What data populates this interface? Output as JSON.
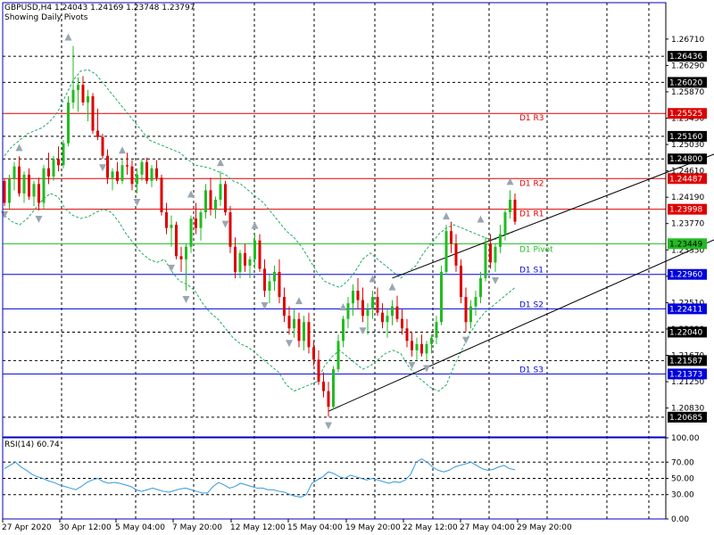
{
  "header": {
    "symbol_line": "GBPUSD,H4  1.24043 1.24169 1.23748 1.23797",
    "subtitle": "Showing Daily Pivots"
  },
  "rsi_label": "RSI(14) 60.74",
  "colors": {
    "frame": "#0000c0",
    "bull": "#22bb22",
    "bear": "#dd0000",
    "band": "#22aa66",
    "resistance": "#dd0000",
    "support": "#0000dd",
    "pivot": "#22bb22",
    "channel": "#000000",
    "rsi": "#3399dd",
    "grid": "#000000",
    "fractal": "#9aa6b2"
  },
  "chart_data": {
    "type": "candlestick",
    "symbol": "GBPUSD",
    "timeframe": "H4",
    "price_axis": {
      "min": 1.2037,
      "max": 1.2729,
      "ticks": [
        "1.26710",
        "1.26290",
        "1.25870",
        "1.25450",
        "1.25030",
        "1.24610",
        "1.24190",
        "1.23770",
        "1.23350",
        "1.22930",
        "1.22510",
        "1.22090",
        "1.21670",
        "1.21250",
        "1.20830"
      ]
    },
    "highlighted_prices": [
      {
        "label": "1.26436",
        "value": 1.26436,
        "kind": "fractal-level"
      },
      {
        "label": "1.26020",
        "value": 1.2602,
        "kind": "fractal-level"
      },
      {
        "label": "1.25525",
        "value": 1.25525,
        "kind": "resistance"
      },
      {
        "label": "1.25160",
        "value": 1.2516,
        "kind": "fractal-level"
      },
      {
        "label": "1.24800",
        "value": 1.248,
        "kind": "fractal-level"
      },
      {
        "label": "1.24487",
        "value": 1.24487,
        "kind": "resistance"
      },
      {
        "label": "1.23998",
        "value": 1.23998,
        "kind": "resistance"
      },
      {
        "label": "1.23449",
        "value": 1.23449,
        "kind": "pivot"
      },
      {
        "label": "1.22960",
        "value": 1.2296,
        "kind": "support"
      },
      {
        "label": "1.22411",
        "value": 1.22411,
        "kind": "support"
      },
      {
        "label": "1.22040",
        "value": 1.2204,
        "kind": "fractal-level"
      },
      {
        "label": "1.21587",
        "value": 1.21587,
        "kind": "fractal-level"
      },
      {
        "label": "1.21373",
        "value": 1.21373,
        "kind": "support"
      },
      {
        "label": "1.20685",
        "value": 1.20685,
        "kind": "fractal-level"
      }
    ],
    "pivot_lines": [
      {
        "name": "D1 R3",
        "value": 1.25525,
        "kind": "resistance"
      },
      {
        "name": "D1 R2",
        "value": 1.24487,
        "kind": "resistance"
      },
      {
        "name": "D1 R1",
        "value": 1.23998,
        "kind": "resistance"
      },
      {
        "name": "D1 Pivot",
        "value": 1.23449,
        "kind": "pivot"
      },
      {
        "name": "D1 S1",
        "value": 1.2296,
        "kind": "support"
      },
      {
        "name": "D1 S2",
        "value": 1.22411,
        "kind": "support"
      },
      {
        "name": "D1 S3",
        "value": 1.21373,
        "kind": "support"
      }
    ],
    "dotted_levels": [
      1.26436,
      1.2602,
      1.2516,
      1.248,
      1.2204,
      1.21587,
      1.20685
    ],
    "time_labels": [
      "27 Apr 2020",
      "30 Apr 12:00",
      "5 May 04:00",
      "7 May 20:00",
      "12 May 12:00",
      "15 May 04:00",
      "19 May 20:00",
      "22 May 12:00",
      "27 May 04:00",
      "29 May 20:00"
    ],
    "candles": [
      [
        1.2445,
        1.2448,
        1.2405,
        1.241
      ],
      [
        1.241,
        1.2455,
        1.24,
        1.2448
      ],
      [
        1.2448,
        1.2475,
        1.243,
        1.2468
      ],
      [
        1.2468,
        1.2484,
        1.242,
        1.2425
      ],
      [
        1.2425,
        1.246,
        1.241,
        1.2455
      ],
      [
        1.2455,
        1.2465,
        1.2415,
        1.242
      ],
      [
        1.242,
        1.2445,
        1.2405,
        1.244
      ],
      [
        1.244,
        1.245,
        1.2398,
        1.241
      ],
      [
        1.241,
        1.247,
        1.24,
        1.2465
      ],
      [
        1.2465,
        1.249,
        1.244,
        1.2452
      ],
      [
        1.2452,
        1.2485,
        1.2445,
        1.248
      ],
      [
        1.248,
        1.25,
        1.246,
        1.247
      ],
      [
        1.247,
        1.251,
        1.2465,
        1.2505
      ],
      [
        1.2505,
        1.258,
        1.25,
        1.257
      ],
      [
        1.257,
        1.266,
        1.256,
        1.259
      ],
      [
        1.259,
        1.261,
        1.2555,
        1.2598
      ],
      [
        1.2598,
        1.2612,
        1.2565,
        1.257
      ],
      [
        1.257,
        1.259,
        1.254,
        1.258
      ],
      [
        1.258,
        1.2585,
        1.252,
        1.2525
      ],
      [
        1.2525,
        1.256,
        1.251,
        1.2515
      ],
      [
        1.2515,
        1.252,
        1.248,
        1.2485
      ],
      [
        1.2485,
        1.2495,
        1.244,
        1.245
      ],
      [
        1.245,
        1.2465,
        1.243,
        1.246
      ],
      [
        1.246,
        1.2475,
        1.244,
        1.2445
      ],
      [
        1.2445,
        1.248,
        1.244,
        1.247
      ],
      [
        1.247,
        1.249,
        1.2455,
        1.2468
      ],
      [
        1.2468,
        1.2478,
        1.243,
        1.244
      ],
      [
        1.244,
        1.2465,
        1.2425,
        1.2455
      ],
      [
        1.2455,
        1.248,
        1.2445,
        1.2475
      ],
      [
        1.2475,
        1.2482,
        1.244,
        1.2445
      ],
      [
        1.2445,
        1.247,
        1.2435,
        1.2465
      ],
      [
        1.2465,
        1.2478,
        1.2445,
        1.245
      ],
      [
        1.245,
        1.2455,
        1.239,
        1.2395
      ],
      [
        1.2395,
        1.241,
        1.236,
        1.237
      ],
      [
        1.237,
        1.239,
        1.234,
        1.2375
      ],
      [
        1.2375,
        1.238,
        1.232,
        1.2325
      ],
      [
        1.2325,
        1.234,
        1.23,
        1.232
      ],
      [
        1.232,
        1.2345,
        1.227,
        1.234
      ],
      [
        1.234,
        1.239,
        1.233,
        1.2385
      ],
      [
        1.2385,
        1.241,
        1.236,
        1.237
      ],
      [
        1.237,
        1.24,
        1.235,
        1.2395
      ],
      [
        1.2395,
        1.244,
        1.2385,
        1.243
      ],
      [
        1.243,
        1.245,
        1.239,
        1.24
      ],
      [
        1.24,
        1.242,
        1.2385,
        1.2415
      ],
      [
        1.2415,
        1.246,
        1.2405,
        1.244
      ],
      [
        1.244,
        1.2445,
        1.239,
        1.2395
      ],
      [
        1.2395,
        1.2405,
        1.233,
        1.234
      ],
      [
        1.234,
        1.2355,
        1.229,
        1.23
      ],
      [
        1.23,
        1.2335,
        1.229,
        1.233
      ],
      [
        1.233,
        1.2345,
        1.23,
        1.231
      ],
      [
        1.231,
        1.2325,
        1.229,
        1.232
      ],
      [
        1.232,
        1.236,
        1.2305,
        1.235
      ],
      [
        1.235,
        1.236,
        1.23,
        1.2305
      ],
      [
        1.2305,
        1.232,
        1.226,
        1.227
      ],
      [
        1.227,
        1.2295,
        1.225,
        1.2285
      ],
      [
        1.2285,
        1.231,
        1.227,
        1.23
      ],
      [
        1.23,
        1.232,
        1.225,
        1.226
      ],
      [
        1.226,
        1.2275,
        1.222,
        1.223
      ],
      [
        1.223,
        1.2245,
        1.22,
        1.221
      ],
      [
        1.221,
        1.224,
        1.2195,
        1.2225
      ],
      [
        1.2225,
        1.2235,
        1.218,
        1.219
      ],
      [
        1.219,
        1.223,
        1.2175,
        1.222
      ],
      [
        1.222,
        1.2235,
        1.217,
        1.218
      ],
      [
        1.218,
        1.219,
        1.215,
        1.216
      ],
      [
        1.216,
        1.2175,
        1.212,
        1.2125
      ],
      [
        1.2125,
        1.214,
        1.21,
        1.211
      ],
      [
        1.211,
        1.2125,
        1.2069,
        1.2085
      ],
      [
        1.2085,
        1.215,
        1.208,
        1.2145
      ],
      [
        1.2145,
        1.22,
        1.214,
        1.219
      ],
      [
        1.219,
        1.223,
        1.218,
        1.2225
      ],
      [
        1.2225,
        1.226,
        1.221,
        1.225
      ],
      [
        1.225,
        1.228,
        1.223,
        1.227
      ],
      [
        1.227,
        1.229,
        1.224,
        1.2255
      ],
      [
        1.2255,
        1.2275,
        1.222,
        1.223
      ],
      [
        1.223,
        1.225,
        1.22,
        1.224
      ],
      [
        1.224,
        1.227,
        1.2225,
        1.226
      ],
      [
        1.226,
        1.2275,
        1.223,
        1.2235
      ],
      [
        1.2235,
        1.225,
        1.221,
        1.222
      ],
      [
        1.222,
        1.224,
        1.2195,
        1.223
      ],
      [
        1.223,
        1.2255,
        1.2215,
        1.2245
      ],
      [
        1.2245,
        1.2262,
        1.222,
        1.2225
      ],
      [
        1.2225,
        1.224,
        1.22,
        1.221
      ],
      [
        1.221,
        1.2225,
        1.218,
        1.219
      ],
      [
        1.219,
        1.2205,
        1.2165,
        1.2175
      ],
      [
        1.2175,
        1.2195,
        1.216,
        1.2185
      ],
      [
        1.2185,
        1.22,
        1.2165,
        1.217
      ],
      [
        1.217,
        1.219,
        1.216,
        1.2185
      ],
      [
        1.2185,
        1.22,
        1.217,
        1.2195
      ],
      [
        1.2195,
        1.223,
        1.2185,
        1.222
      ],
      [
        1.222,
        1.231,
        1.2215,
        1.23
      ],
      [
        1.23,
        1.2375,
        1.2295,
        1.2365
      ],
      [
        1.2365,
        1.238,
        1.233,
        1.2345
      ],
      [
        1.2345,
        1.236,
        1.23,
        1.231
      ],
      [
        1.231,
        1.232,
        1.225,
        1.226
      ],
      [
        1.226,
        1.2275,
        1.2205,
        1.222
      ],
      [
        1.222,
        1.2255,
        1.221,
        1.2245
      ],
      [
        1.2245,
        1.227,
        1.223,
        1.226
      ],
      [
        1.226,
        1.23,
        1.225,
        1.229
      ],
      [
        1.229,
        1.2355,
        1.2285,
        1.2345
      ],
      [
        1.2345,
        1.236,
        1.2305,
        1.2315
      ],
      [
        1.2315,
        1.2345,
        1.23,
        1.234
      ],
      [
        1.234,
        1.2375,
        1.233,
        1.236
      ],
      [
        1.236,
        1.24,
        1.235,
        1.2395
      ],
      [
        1.2395,
        1.243,
        1.2385,
        1.2415
      ],
      [
        1.2415,
        1.2425,
        1.2375,
        1.238
      ]
    ],
    "upper_band": [
      1.2485,
      1.25,
      1.251,
      1.252,
      1.2525,
      1.253,
      1.254,
      1.2555,
      1.258,
      1.2605,
      1.262,
      1.2622,
      1.2615,
      1.26,
      1.2585,
      1.257,
      1.2555,
      1.254,
      1.2525,
      1.251,
      1.2505,
      1.25,
      1.2495,
      1.249,
      1.248,
      1.247,
      1.2468,
      1.2465,
      1.246,
      1.2455,
      1.2445,
      1.244,
      1.243,
      1.242,
      1.241,
      1.2395,
      1.238,
      1.2365,
      1.2355,
      1.234,
      1.232,
      1.23,
      1.2285,
      1.228,
      1.2275,
      1.2285,
      1.23,
      1.232,
      1.233,
      1.232,
      1.231,
      1.23,
      1.229,
      1.23,
      1.231,
      1.233,
      1.2345,
      1.236,
      1.237,
      1.2375,
      1.237,
      1.2365,
      1.236,
      1.2355,
      1.235,
      1.2355,
      1.236,
      1.2365
    ],
    "lower_band": [
      1.239,
      1.238,
      1.2375,
      1.2385,
      1.24,
      1.2415,
      1.2425,
      1.242,
      1.24,
      1.239,
      1.2385,
      1.2388,
      1.2395,
      1.24,
      1.2395,
      1.238,
      1.236,
      1.2345,
      1.233,
      1.232,
      1.2315,
      1.232,
      1.23,
      1.2285,
      1.228,
      1.227,
      1.225,
      1.2235,
      1.2225,
      1.221,
      1.2195,
      1.2185,
      1.218,
      1.217,
      1.216,
      1.215,
      1.214,
      1.212,
      1.211,
      1.2115,
      1.212,
      1.2125,
      1.215,
      1.2165,
      1.2175,
      1.2165,
      1.2155,
      1.2145,
      1.215,
      1.216,
      1.217,
      1.2175,
      1.217,
      1.215,
      1.2135,
      1.2125,
      1.2115,
      1.211,
      1.212,
      1.215,
      1.2175,
      1.22,
      1.222,
      1.2235,
      1.2245,
      1.2255,
      1.2265,
      1.2275
    ],
    "channel_lines": [
      {
        "from": [
          66,
          1.2078
        ],
        "to": [
          154,
          1.2384
        ]
      },
      {
        "from": [
          79,
          1.229
        ],
        "to": [
          154,
          1.2516
        ]
      }
    ],
    "fractals_up": [
      [
        3,
        1.2484
      ],
      [
        13,
        1.266
      ],
      [
        24,
        1.248
      ],
      [
        38,
        1.241
      ],
      [
        44,
        1.246
      ],
      [
        51,
        1.236
      ],
      [
        60,
        1.224
      ],
      [
        69,
        1.223
      ],
      [
        75,
        1.2275
      ],
      [
        79,
        1.2262
      ],
      [
        90,
        1.2375
      ],
      [
        97,
        1.237
      ],
      [
        103,
        1.243
      ]
    ],
    "fractals_down": [
      [
        0,
        1.2405
      ],
      [
        7,
        1.2398
      ],
      [
        20,
        1.248
      ],
      [
        27,
        1.2425
      ],
      [
        34,
        1.232
      ],
      [
        37,
        1.227
      ],
      [
        45,
        1.239
      ],
      [
        53,
        1.226
      ],
      [
        58,
        1.22
      ],
      [
        66,
        1.2069
      ],
      [
        73,
        1.222
      ],
      [
        83,
        1.2165
      ],
      [
        86,
        1.216
      ],
      [
        94,
        1.2205
      ],
      [
        100,
        1.23
      ]
    ],
    "rsi": {
      "period": 14,
      "last": 60.74,
      "axis_ticks": [
        "100.00",
        "70.00",
        "50.00",
        "30.00",
        "0.00"
      ],
      "levels": [
        70,
        50,
        30
      ],
      "values": [
        62,
        66,
        70,
        64,
        60,
        55,
        52,
        50,
        47,
        45,
        42,
        40,
        38,
        36,
        40,
        45,
        48,
        50,
        46,
        44,
        45,
        44,
        42,
        40,
        36,
        34,
        36,
        38,
        36,
        34,
        33,
        35,
        37,
        38,
        36,
        34,
        32,
        32,
        40,
        45,
        42,
        38,
        40,
        44,
        42,
        40,
        38,
        38,
        36,
        36,
        34,
        33,
        30,
        28,
        27,
        30,
        44,
        48,
        52,
        58,
        56,
        52,
        50,
        54,
        52,
        50,
        48,
        50,
        48,
        46,
        44,
        46,
        45,
        48,
        55,
        70,
        74,
        70,
        64,
        60,
        58,
        60,
        64,
        66,
        68,
        70,
        66,
        62,
        60,
        61,
        64,
        66,
        62,
        60.74
      ]
    }
  }
}
